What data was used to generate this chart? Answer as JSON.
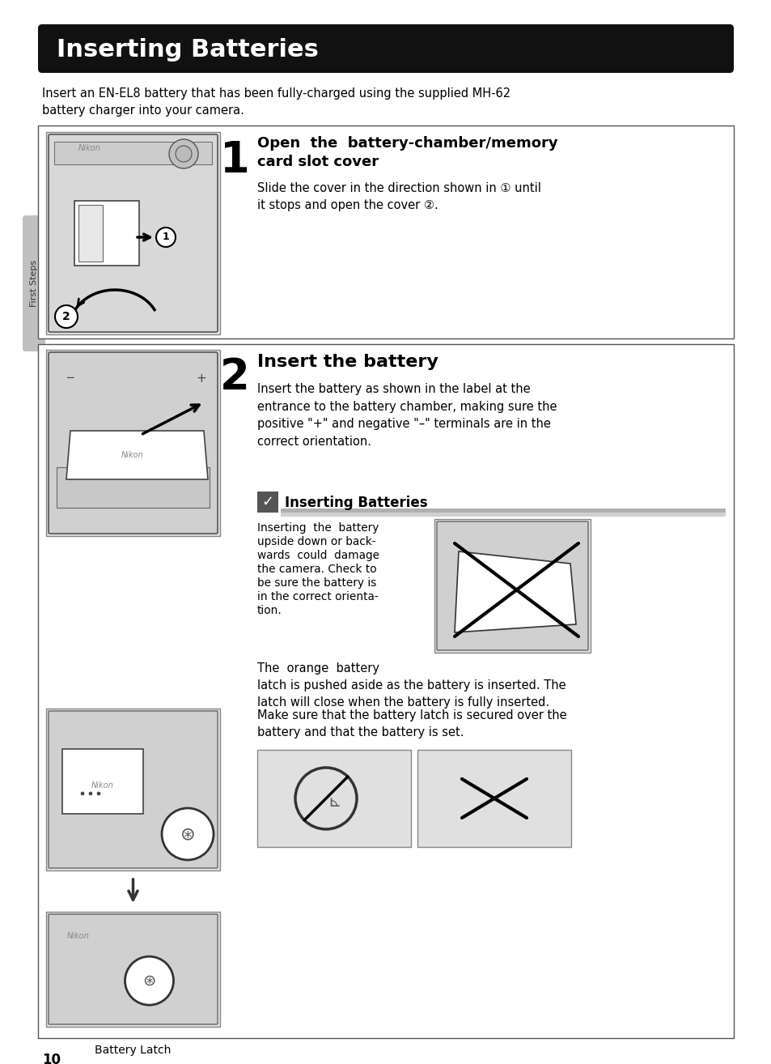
{
  "title": "Inserting Batteries",
  "title_bg": "#111111",
  "title_color": "#ffffff",
  "page_bg": "#ffffff",
  "intro_text": "Insert an EN-EL8 battery that has been fully-charged using the supplied MH-62\nbattery charger into your camera.",
  "step1_number": "1",
  "step1_heading": "Open  the  battery-chamber/memory\ncard slot cover",
  "step1_body": "Slide the cover in the direction shown in (1) until\nit stops and open the cover (2).",
  "step1_body2": "Slide the cover in the direction shown in (①) until\nit stops and open the cover (②).",
  "step2_number": "2",
  "step2_heading": "Insert the battery",
  "step2_body": "Insert the battery as shown in the label at the\nentrance to the battery chamber, making sure the\npositive \"+\" and negative \"–\" terminals are in the\ncorrect orientation.",
  "caution_title": "Inserting Batteries",
  "caution_body1_lines": [
    "Inserting  the  battery",
    "upside down or back-",
    "wards  could  damage",
    "the camera. Check to",
    "be sure the battery is",
    "in the correct orienta-",
    "tion."
  ],
  "caution_body2": "The  orange  battery\nlatch is pushed aside as the battery is inserted. The\nlatch will close when the battery is fully inserted.",
  "caution_body3": "Make sure that the battery latch is secured over the\nbattery and that the battery is set.",
  "battery_latch_label": "Battery Latch",
  "first_steps_label": "First Steps",
  "page_number": "10",
  "img_fill": "#e0e0e0",
  "img_edge": "#888888",
  "note_bar_color": "#b0b0b0",
  "sidebar_color": "#c0c0c0"
}
